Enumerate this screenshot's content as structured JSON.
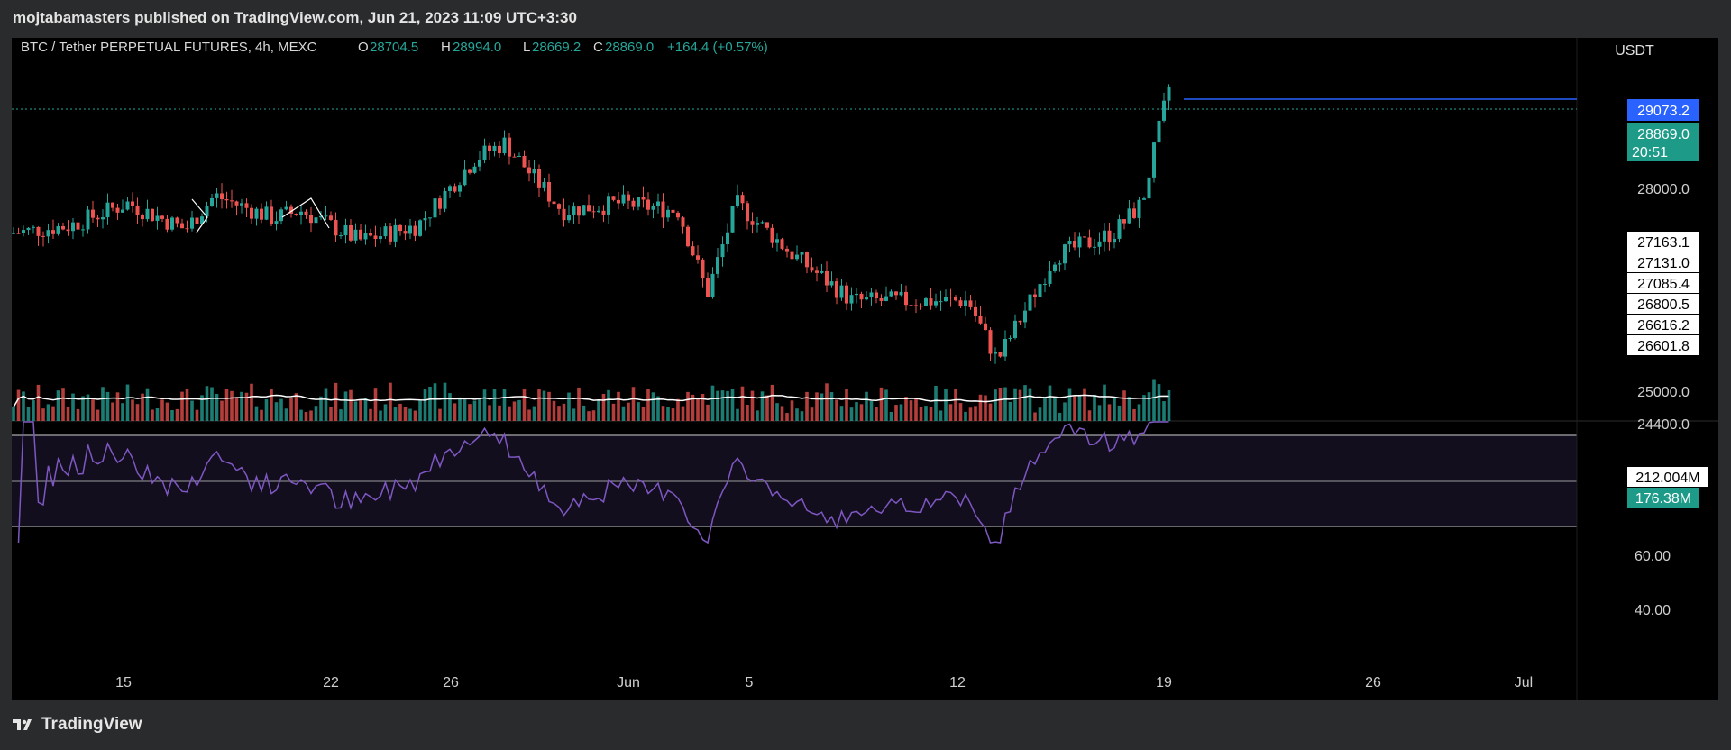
{
  "header": {
    "publisher": "mojtabamasters published on TradingView.com, Jun 21, 2023 11:09 UTC+3:30"
  },
  "legend": {
    "symbol": "BTC / Tether PERPETUAL FUTURES, 4h, MEXC",
    "o_label": "O",
    "o": "28704.5",
    "h_label": "H",
    "h": "28994.0",
    "l_label": "L",
    "l": "28669.2",
    "c_label": "C",
    "c": "28869.0",
    "change": "+164.4 (+0.57%)"
  },
  "currency": "USDT",
  "brand": "TradingView",
  "colors": {
    "up": "#26a69a",
    "down": "#ef5350",
    "rsi": "#7e57c2",
    "accent": "#2962ff",
    "ma": "#ffffff"
  },
  "chart_data": [
    {
      "type": "candlestick",
      "title": "BTC / Tether PERPETUAL FUTURES, 4h, MEXC",
      "timeframe": "4h",
      "x_range": [
        "2023-05-12",
        "2023-07-05"
      ],
      "x_ticks": [
        "15",
        "22",
        "26",
        "Jun",
        "5",
        "12",
        "19",
        "26",
        "Jul"
      ],
      "y_ticks": [
        "28000.0",
        "25000.0",
        "24400.0"
      ],
      "price_levels": [
        "27163.1",
        "27131.0",
        "27085.4",
        "26800.5",
        "26616.2",
        "26601.8"
      ],
      "horizontal_line": "29073.2",
      "last_price": "28869.0",
      "countdown": "20:51",
      "approx_daily_close": [
        {
          "date": "2023-05-12",
          "close": 26800
        },
        {
          "date": "2023-05-14",
          "close": 26900
        },
        {
          "date": "2023-05-16",
          "close": 27200
        },
        {
          "date": "2023-05-18",
          "close": 26850
        },
        {
          "date": "2023-05-19",
          "close": 27300
        },
        {
          "date": "2023-05-21",
          "close": 27000
        },
        {
          "date": "2023-05-22",
          "close": 27100
        },
        {
          "date": "2023-05-24",
          "close": 26700
        },
        {
          "date": "2023-05-26",
          "close": 26900
        },
        {
          "date": "2023-05-28",
          "close": 27800
        },
        {
          "date": "2023-05-29",
          "close": 28000
        },
        {
          "date": "2023-05-31",
          "close": 27100
        },
        {
          "date": "2023-06-02",
          "close": 27200
        },
        {
          "date": "2023-06-04",
          "close": 27100
        },
        {
          "date": "2023-06-05",
          "close": 26000
        },
        {
          "date": "2023-06-06",
          "close": 27200
        },
        {
          "date": "2023-06-08",
          "close": 26500
        },
        {
          "date": "2023-06-10",
          "close": 25900
        },
        {
          "date": "2023-06-12",
          "close": 25900
        },
        {
          "date": "2023-06-14",
          "close": 25900
        },
        {
          "date": "2023-06-15",
          "close": 25100
        },
        {
          "date": "2023-06-17",
          "close": 26500
        },
        {
          "date": "2023-06-19",
          "close": 26800
        },
        {
          "date": "2023-06-20",
          "close": 27200
        },
        {
          "date": "2023-06-21",
          "close": 28869
        }
      ]
    },
    {
      "type": "bar",
      "title": "Volume",
      "labels": [
        "212.004M",
        "176.38M"
      ]
    },
    {
      "type": "line",
      "title": "RSI",
      "y_ticks": [
        "60.00",
        "40.00"
      ],
      "levels": [
        70,
        50,
        30
      ]
    }
  ]
}
